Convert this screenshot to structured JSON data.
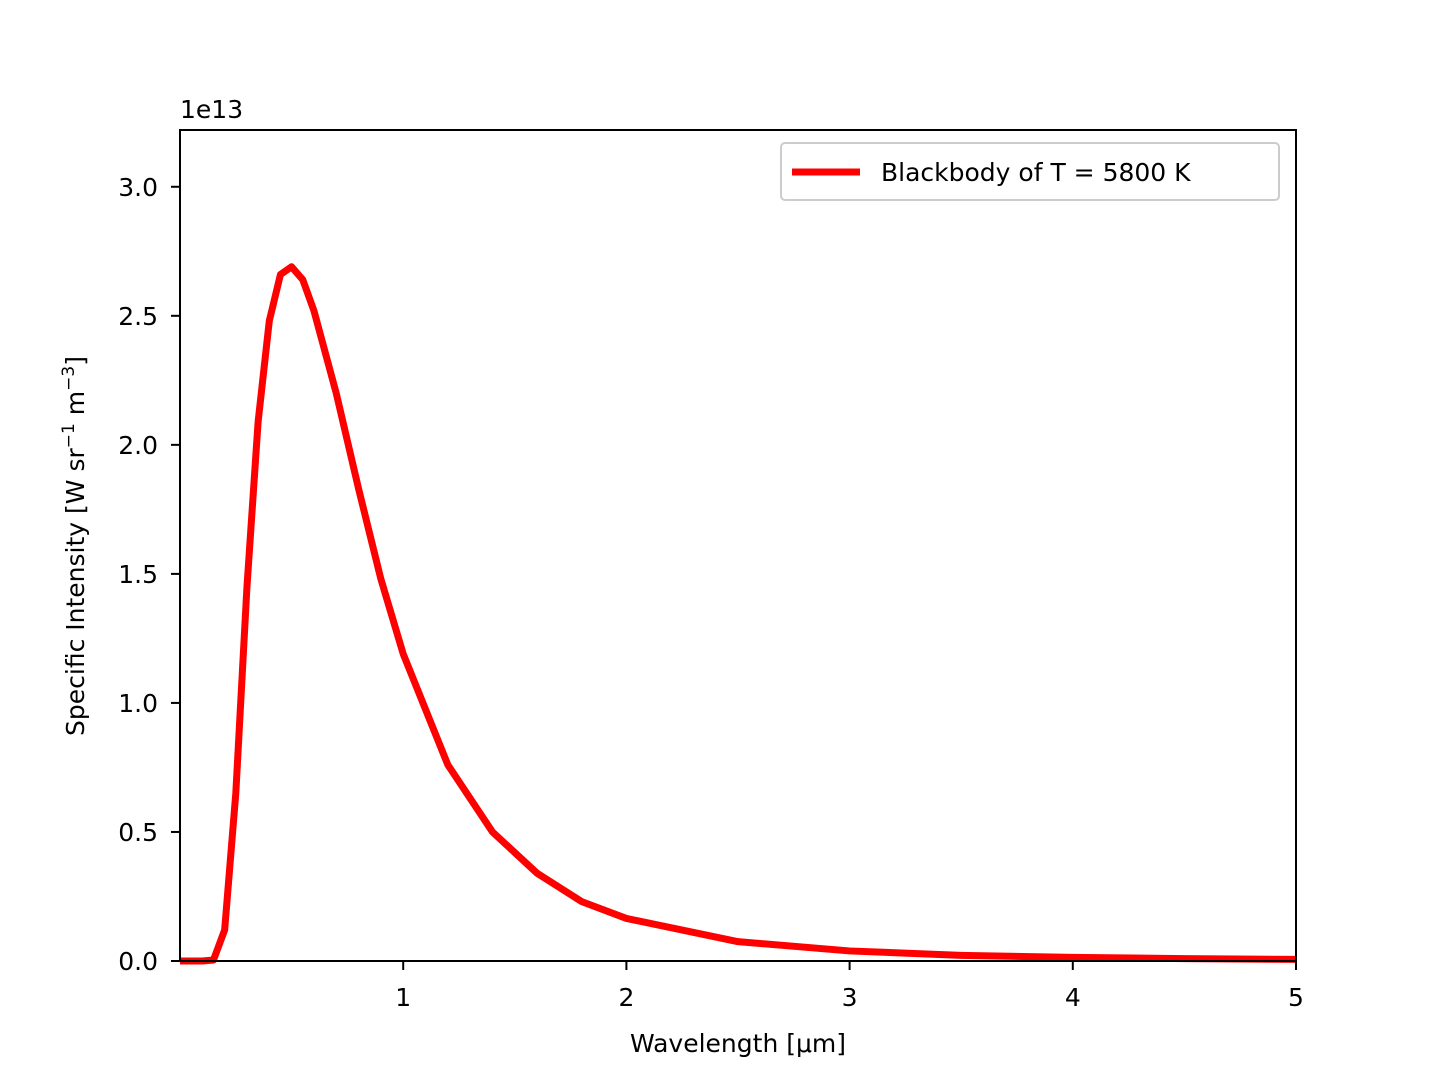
{
  "chart_data": {
    "type": "line",
    "title": "",
    "xlabel": "Wavelength [μm]",
    "ylabel_parts": [
      "Specific Intensity [W sr",
      "−1",
      " m",
      "−3",
      "]"
    ],
    "y_offset_label": "1e13",
    "xlim": [
      0.0,
      5.0
    ],
    "ylim": [
      0.0,
      3.22
    ],
    "x_ticks": [
      1,
      2,
      3,
      4,
      5
    ],
    "x_tick_labels": [
      "1",
      "2",
      "3",
      "4",
      "5"
    ],
    "y_ticks": [
      0.0,
      0.5,
      1.0,
      1.5,
      2.0,
      2.5,
      3.0
    ],
    "y_tick_labels": [
      "0.0",
      "0.5",
      "1.0",
      "1.5",
      "2.0",
      "2.5",
      "3.0"
    ],
    "grid": false,
    "legend_position": "upper right",
    "series": [
      {
        "name": "Blackbody of T = 5800 K",
        "color": "#ff0000",
        "temperature_K": 5800,
        "x": [
          0.0,
          0.1,
          0.15,
          0.2,
          0.25,
          0.3,
          0.35,
          0.4,
          0.45,
          0.5,
          0.55,
          0.6,
          0.7,
          0.8,
          0.9,
          1.0,
          1.2,
          1.4,
          1.6,
          1.8,
          2.0,
          2.5,
          3.0,
          3.5,
          4.0,
          4.5,
          5.0
        ],
        "y": [
          0.0,
          0.0,
          0.004,
          0.12,
          0.65,
          1.45,
          2.09,
          2.48,
          2.66,
          2.69,
          2.64,
          2.52,
          2.2,
          1.83,
          1.48,
          1.19,
          0.76,
          0.5,
          0.34,
          0.23,
          0.165,
          0.075,
          0.039,
          0.022,
          0.014,
          0.0093,
          0.0063
        ]
      }
    ]
  }
}
